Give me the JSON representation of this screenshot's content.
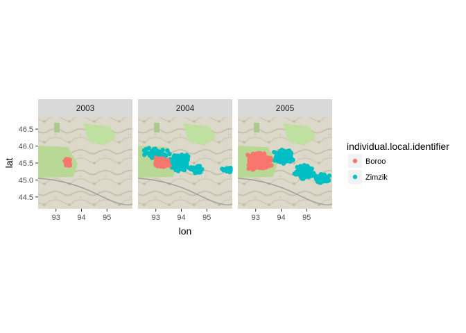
{
  "chart_data": {
    "type": "scatter",
    "xlabel": "lon",
    "ylabel": "lat",
    "xlim": [
      92.3,
      96.0
    ],
    "ylim": [
      44.15,
      46.85
    ],
    "x_ticks": [
      93,
      94,
      95
    ],
    "y_ticks": [
      44.5,
      45.0,
      45.5,
      46.0,
      46.5
    ],
    "y_tick_labels": [
      "44.5",
      "45.0",
      "45.5",
      "46.0",
      "46.5"
    ],
    "background": "map tiles",
    "legend": {
      "title": "individual.local.identifier",
      "placement": "right",
      "entries": [
        {
          "name": "Boroo",
          "color": "#F8766D"
        },
        {
          "name": "Zimzik",
          "color": "#00BFC4"
        }
      ]
    },
    "facets": [
      {
        "label": "2003",
        "series": [
          {
            "name": "Boroo",
            "color": "#F8766D",
            "clusters": [
              {
                "cx": 93.45,
                "cy": 45.52,
                "rx": 0.16,
                "ry": 0.13,
                "n": 60
              }
            ]
          }
        ]
      },
      {
        "label": "2004",
        "series": [
          {
            "name": "Zimzik",
            "color": "#00BFC4",
            "clusters": [
              {
                "cx": 93.0,
                "cy": 45.78,
                "rx": 0.6,
                "ry": 0.2,
                "n": 60
              },
              {
                "cx": 93.9,
                "cy": 45.55,
                "rx": 0.45,
                "ry": 0.3,
                "n": 180
              },
              {
                "cx": 94.6,
                "cy": 45.3,
                "rx": 0.35,
                "ry": 0.15,
                "n": 40
              },
              {
                "cx": 95.8,
                "cy": 45.3,
                "rx": 0.25,
                "ry": 0.08,
                "n": 20
              }
            ]
          },
          {
            "name": "Boroo",
            "color": "#F8766D",
            "clusters": [
              {
                "cx": 93.2,
                "cy": 45.5,
                "rx": 0.4,
                "ry": 0.18,
                "n": 120
              }
            ]
          }
        ]
      },
      {
        "label": "2005",
        "series": [
          {
            "name": "Zimzik",
            "color": "#00BFC4",
            "clusters": [
              {
                "cx": 94.1,
                "cy": 45.68,
                "rx": 0.45,
                "ry": 0.25,
                "n": 160
              },
              {
                "cx": 94.9,
                "cy": 45.25,
                "rx": 0.45,
                "ry": 0.25,
                "n": 120
              },
              {
                "cx": 95.6,
                "cy": 45.05,
                "rx": 0.35,
                "ry": 0.2,
                "n": 50
              }
            ]
          },
          {
            "name": "Boroo",
            "color": "#F8766D",
            "clusters": [
              {
                "cx": 93.15,
                "cy": 45.55,
                "rx": 0.55,
                "ry": 0.3,
                "n": 320
              }
            ]
          }
        ]
      }
    ]
  }
}
